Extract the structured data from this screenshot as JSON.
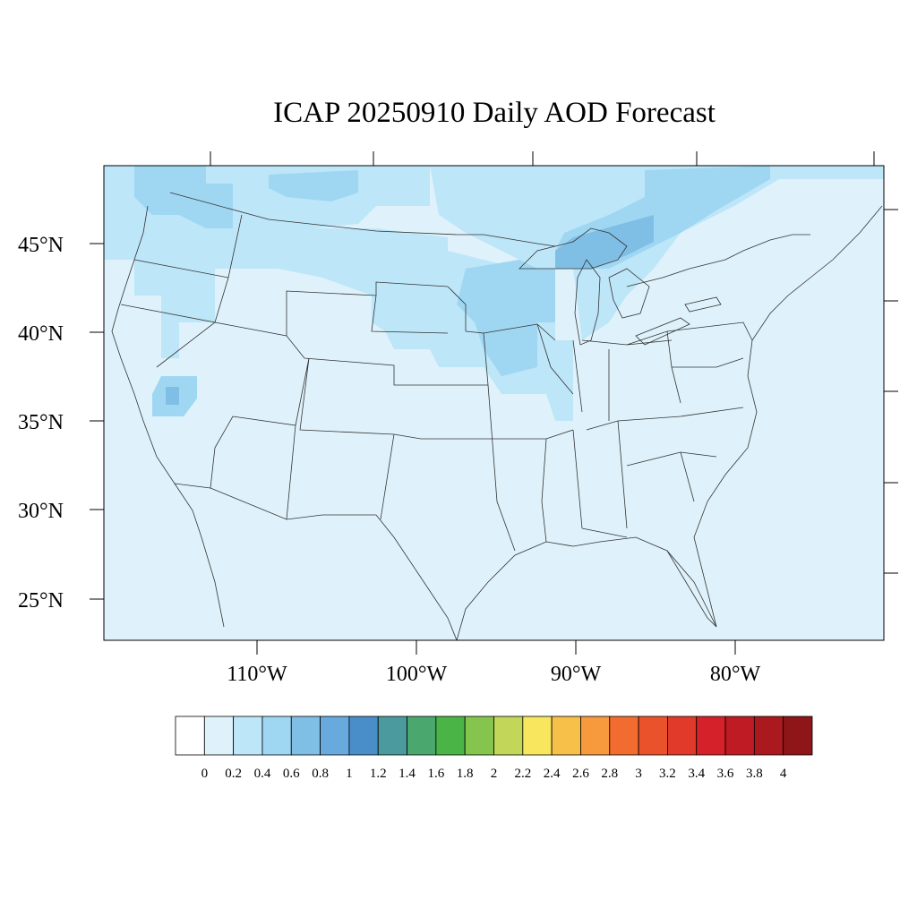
{
  "title": "ICAP 20250910 Daily AOD Forecast",
  "map": {
    "lat_labels": [
      "45°N",
      "40°N",
      "35°N",
      "30°N",
      "25°N"
    ],
    "lon_labels": [
      "110°W",
      "100°W",
      "90°W",
      "80°W"
    ],
    "background_color": "#dff2fb",
    "border_color": "#333333"
  },
  "aod_regions": [
    {
      "name": "northwest-plume",
      "level": "0.2-0.4"
    },
    {
      "name": "northern-plains",
      "level": "0.2-0.4"
    },
    {
      "name": "upper-midwest",
      "level": "0.4-0.6"
    },
    {
      "name": "great-lakes",
      "level": "0.6-0.8"
    },
    {
      "name": "southern-california",
      "level": "0.6-0.8"
    },
    {
      "name": "ontario",
      "level": "0.4-0.6"
    }
  ],
  "colorbar": {
    "labels": [
      "0",
      "0.2",
      "0.4",
      "0.6",
      "0.8",
      "1",
      "1.2",
      "1.4",
      "1.6",
      "1.8",
      "2",
      "2.2",
      "2.4",
      "2.6",
      "2.8",
      "3",
      "3.2",
      "3.4",
      "3.6",
      "3.8",
      "4"
    ],
    "colors": [
      "#ffffff",
      "#dff2fb",
      "#bde6f8",
      "#9fd7f3",
      "#80bfe5",
      "#68a9de",
      "#4a8ec9",
      "#4b9a9e",
      "#4aa76e",
      "#4bb447",
      "#86c54d",
      "#c2d75a",
      "#f7e65e",
      "#f7c048",
      "#f69a3d",
      "#f26b2f",
      "#ea522c",
      "#e13a2a",
      "#d52129",
      "#bf1b24",
      "#a9191e",
      "#8e1619"
    ]
  }
}
